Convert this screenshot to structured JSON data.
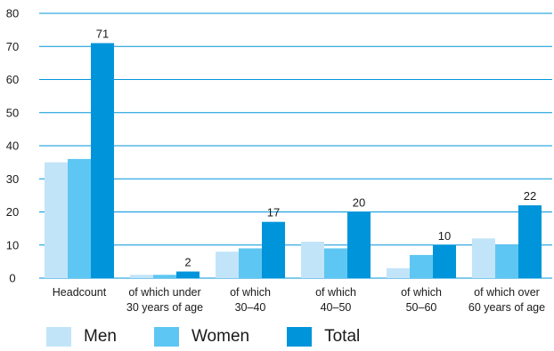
{
  "chart_data": {
    "type": "bar",
    "title": "",
    "xlabel": "",
    "ylabel": "",
    "ylim": [
      0,
      80
    ],
    "yticks": [
      0,
      10,
      20,
      30,
      40,
      50,
      60,
      70,
      80
    ],
    "grid": true,
    "legend_position": "bottom",
    "categories": [
      [
        "Headcount"
      ],
      [
        "of which under",
        "30 years of age"
      ],
      [
        "of which",
        "30–40"
      ],
      [
        "of which",
        "40–50"
      ],
      [
        "of which",
        "50–60"
      ],
      [
        "of which over",
        "60 years of age"
      ]
    ],
    "series": [
      {
        "name": "Men",
        "color": "#c2e4f9",
        "values": [
          35,
          1,
          8,
          11,
          3,
          12
        ]
      },
      {
        "name": "Women",
        "color": "#5ec6f2",
        "values": [
          36,
          1,
          9,
          9,
          7,
          10
        ]
      },
      {
        "name": "Total",
        "color": "#0095da",
        "values": [
          71,
          2,
          17,
          20,
          10,
          22
        ]
      }
    ],
    "data_labels": {
      "series": "Total",
      "values": [
        "71",
        "2",
        "17",
        "20",
        "10",
        "22"
      ]
    }
  },
  "colors": {
    "grid": "#0095da",
    "text": "#1a1a1a"
  }
}
